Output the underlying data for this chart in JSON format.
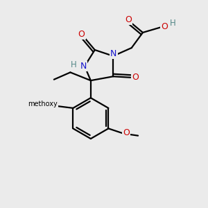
{
  "background_color": "#ebebeb",
  "atom_colors": {
    "C": "#000000",
    "N": "#1414cc",
    "O": "#cc0000",
    "H": "#558888"
  },
  "bond_color": "#000000",
  "figsize": [
    3.0,
    3.0
  ],
  "dpi": 100,
  "xlim": [
    0,
    10
  ],
  "ylim": [
    0,
    10
  ]
}
